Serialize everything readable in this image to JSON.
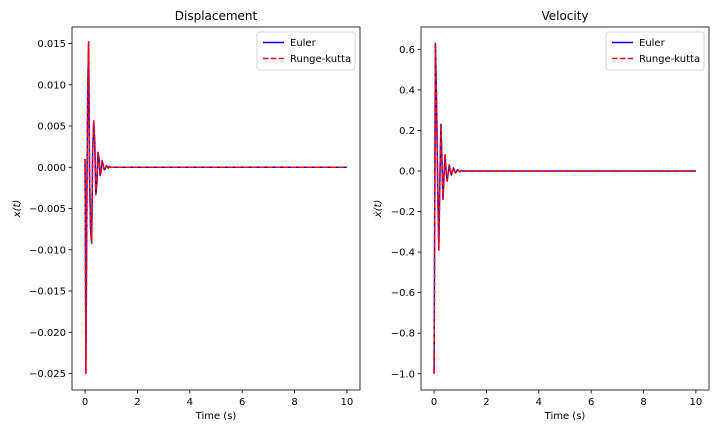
{
  "chart_data": [
    {
      "type": "line",
      "title": "Displacement",
      "xlabel": "Time (s)",
      "ylabel": "x(t)",
      "xlim": [
        -0.5,
        10.5
      ],
      "ylim": [
        -0.027,
        0.017
      ],
      "xticks": [
        0,
        2,
        4,
        6,
        8,
        10
      ],
      "xtick_labels": [
        "0",
        "2",
        "4",
        "6",
        "8",
        "10"
      ],
      "yticks": [
        -0.025,
        -0.02,
        -0.015,
        -0.01,
        -0.005,
        0.0,
        0.005,
        0.01,
        0.015
      ],
      "ytick_labels": [
        "−0.025",
        "−0.020",
        "−0.015",
        "−0.010",
        "−0.005",
        "0.000",
        "0.005",
        "0.010",
        "0.015"
      ],
      "grid": false,
      "legend": "top-right",
      "series": [
        {
          "name": "Euler",
          "color": "#0000ff",
          "style": "solid",
          "x": [
            0.0,
            0.03,
            0.07,
            0.1,
            0.135,
            0.17,
            0.21,
            0.25,
            0.29,
            0.33,
            0.37,
            0.41,
            0.45,
            0.49,
            0.53,
            0.57,
            0.61,
            0.65,
            0.69,
            0.73,
            0.77,
            0.81,
            0.85,
            0.89,
            0.93,
            0.97,
            1.01,
            1.05,
            1.1,
            1.2,
            2.0,
            10.0
          ],
          "y": [
            0.001,
            -0.0249,
            -0.003,
            0.009,
            0.0152,
            -0.001,
            -0.0075,
            -0.0092,
            0.002,
            0.0056,
            0.003,
            -0.0033,
            -0.002,
            0.0018,
            0.0012,
            -0.001,
            -0.0006,
            0.0008,
            0.0003,
            -0.0003,
            -0.0002,
            0.0002,
            0.0001,
            -0.0001,
            0.0001,
            0.0,
            0.0,
            0.0,
            0.0,
            0.0,
            0.0,
            0.0
          ]
        },
        {
          "name": "Runge-kutta",
          "color": "#ff0000",
          "style": "dashed",
          "x": [
            0.0,
            0.03,
            0.07,
            0.1,
            0.135,
            0.17,
            0.21,
            0.25,
            0.29,
            0.33,
            0.37,
            0.41,
            0.45,
            0.49,
            0.53,
            0.57,
            0.61,
            0.65,
            0.69,
            0.73,
            0.77,
            0.81,
            0.85,
            0.89,
            0.93,
            0.97,
            1.01,
            1.05,
            1.1,
            1.2,
            2.0,
            10.0
          ],
          "y": [
            0.001,
            -0.025,
            -0.003,
            0.009,
            0.0152,
            -0.001,
            -0.0075,
            -0.0092,
            0.002,
            0.0056,
            0.003,
            -0.0033,
            -0.002,
            0.0018,
            0.0012,
            -0.001,
            -0.0006,
            0.0008,
            0.0003,
            -0.0003,
            -0.0002,
            0.0002,
            0.0001,
            -0.0001,
            0.0001,
            0.0,
            0.0,
            0.0,
            0.0,
            0.0,
            0.0,
            0.0
          ]
        }
      ]
    },
    {
      "type": "line",
      "title": "Velocity",
      "xlabel": "Time (s)",
      "ylabel": "ẋ(t)",
      "xlim": [
        -0.5,
        10.5
      ],
      "ylim": [
        -1.08,
        0.71
      ],
      "xticks": [
        0,
        2,
        4,
        6,
        8,
        10
      ],
      "xtick_labels": [
        "0",
        "2",
        "4",
        "6",
        "8",
        "10"
      ],
      "yticks": [
        -1.0,
        -0.8,
        -0.6,
        -0.4,
        -0.2,
        0.0,
        0.2,
        0.4,
        0.6
      ],
      "ytick_labels": [
        "−1.0",
        "−0.8",
        "−0.6",
        "−0.4",
        "−0.2",
        "0.0",
        "0.2",
        "0.4",
        "0.6"
      ],
      "grid": false,
      "legend": "top-right",
      "series": [
        {
          "name": "Euler",
          "color": "#0000ff",
          "style": "solid",
          "x": [
            0.0,
            0.05,
            0.1,
            0.14,
            0.18,
            0.22,
            0.26,
            0.3,
            0.34,
            0.38,
            0.42,
            0.46,
            0.5,
            0.54,
            0.58,
            0.62,
            0.66,
            0.7,
            0.74,
            0.78,
            0.82,
            0.86,
            0.9,
            0.94,
            0.98,
            1.02,
            1.06,
            1.1,
            1.2,
            2.0,
            10.0
          ],
          "y": [
            -1.0,
            0.63,
            0.3,
            -0.1,
            -0.39,
            -0.05,
            0.23,
            0.05,
            -0.14,
            -0.02,
            0.08,
            0.0,
            -0.05,
            -0.01,
            0.03,
            0.0,
            -0.02,
            0.0,
            0.015,
            0.0,
            -0.01,
            0.0,
            0.006,
            0.0,
            -0.004,
            0.0,
            0.002,
            0.0,
            0.0,
            0.0,
            0.0
          ]
        },
        {
          "name": "Runge-kutta",
          "color": "#ff0000",
          "style": "dashed",
          "x": [
            0.0,
            0.05,
            0.1,
            0.14,
            0.18,
            0.22,
            0.26,
            0.3,
            0.34,
            0.38,
            0.42,
            0.46,
            0.5,
            0.54,
            0.58,
            0.62,
            0.66,
            0.7,
            0.74,
            0.78,
            0.82,
            0.86,
            0.9,
            0.94,
            0.98,
            1.02,
            1.06,
            1.1,
            1.2,
            2.0,
            10.0
          ],
          "y": [
            -1.0,
            0.63,
            0.3,
            -0.1,
            -0.39,
            -0.05,
            0.23,
            0.05,
            -0.14,
            -0.02,
            0.08,
            0.0,
            -0.05,
            -0.01,
            0.03,
            0.0,
            -0.02,
            0.0,
            0.015,
            0.0,
            -0.01,
            0.0,
            0.006,
            0.0,
            -0.004,
            0.0,
            0.002,
            0.0,
            0.0,
            0.0,
            0.0
          ]
        }
      ]
    }
  ]
}
